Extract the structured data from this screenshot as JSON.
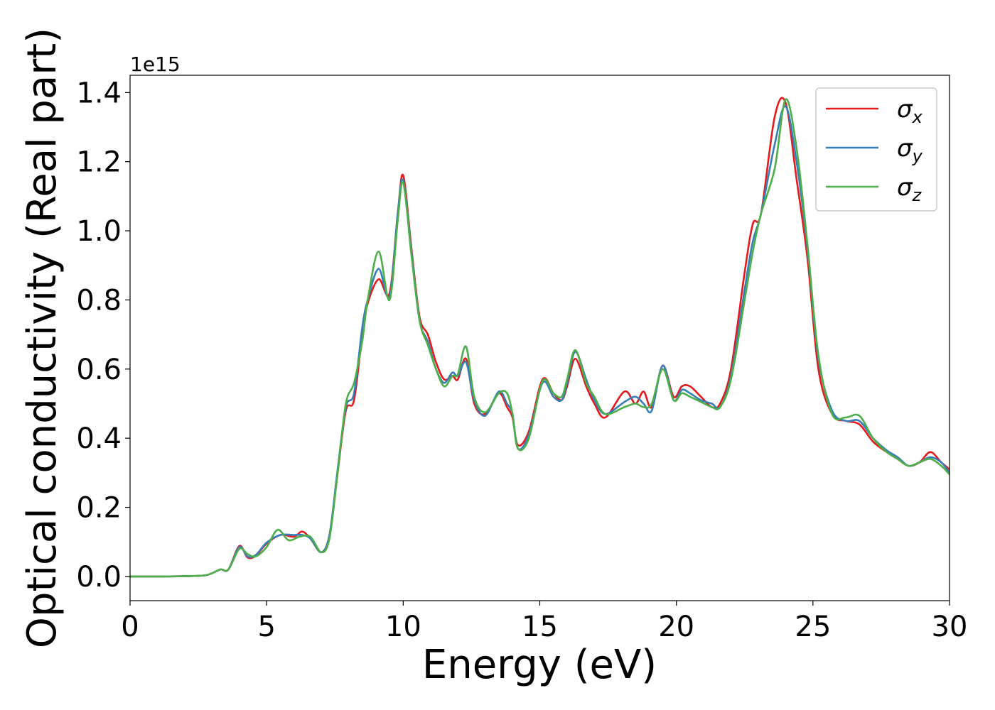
{
  "chart_data": {
    "type": "line",
    "title": "",
    "xlabel": "Energy (eV)",
    "ylabel": "Optical conductivity (Real part)",
    "y_offset_label": "1e15",
    "xlim": [
      0,
      30
    ],
    "ylim": [
      -0.07,
      1.45
    ],
    "xticks": [
      0,
      5,
      10,
      15,
      20,
      25,
      30
    ],
    "xtick_labels": [
      "0",
      "5",
      "10",
      "15",
      "20",
      "25",
      "30"
    ],
    "yticks": [
      0.0,
      0.2,
      0.4,
      0.6,
      0.8,
      1.0,
      1.2,
      1.4
    ],
    "ytick_labels": [
      "0.0",
      "0.2",
      "0.4",
      "0.6",
      "0.8",
      "1.0",
      "1.2",
      "1.4"
    ],
    "grid": false,
    "legend_position": "top-right",
    "series": [
      {
        "name": "σ_x",
        "legend_symbol": "σ",
        "legend_sub": "x",
        "color": "#e41a1c",
        "points": [
          [
            0,
            0
          ],
          [
            1,
            0
          ],
          [
            2,
            0.001
          ],
          [
            2.8,
            0.004
          ],
          [
            3.3,
            0.02
          ],
          [
            3.6,
            0.02
          ],
          [
            4,
            0.088
          ],
          [
            4.3,
            0.055
          ],
          [
            4.6,
            0.06
          ],
          [
            5,
            0.095
          ],
          [
            5.5,
            0.12
          ],
          [
            6,
            0.115
          ],
          [
            6.3,
            0.13
          ],
          [
            6.6,
            0.11
          ],
          [
            7,
            0.07
          ],
          [
            7.3,
            0.12
          ],
          [
            7.6,
            0.3
          ],
          [
            7.9,
            0.48
          ],
          [
            8.2,
            0.51
          ],
          [
            8.5,
            0.7
          ],
          [
            8.7,
            0.79
          ],
          [
            9.1,
            0.86
          ],
          [
            9.5,
            0.82
          ],
          [
            9.8,
            1.05
          ],
          [
            10,
            1.16
          ],
          [
            10.3,
            0.95
          ],
          [
            10.6,
            0.75
          ],
          [
            10.9,
            0.7
          ],
          [
            11.2,
            0.62
          ],
          [
            11.5,
            0.57
          ],
          [
            11.8,
            0.58
          ],
          [
            12,
            0.57
          ],
          [
            12.3,
            0.63
          ],
          [
            12.6,
            0.5
          ],
          [
            13,
            0.47
          ],
          [
            13.5,
            0.53
          ],
          [
            13.8,
            0.49
          ],
          [
            14,
            0.46
          ],
          [
            14.2,
            0.38
          ],
          [
            14.6,
            0.42
          ],
          [
            15.1,
            0.57
          ],
          [
            15.5,
            0.53
          ],
          [
            15.8,
            0.51
          ],
          [
            16,
            0.55
          ],
          [
            16.3,
            0.63
          ],
          [
            16.7,
            0.55
          ],
          [
            17,
            0.5
          ],
          [
            17.4,
            0.46
          ],
          [
            18.1,
            0.535
          ],
          [
            18.5,
            0.5
          ],
          [
            18.8,
            0.535
          ],
          [
            19.1,
            0.49
          ],
          [
            19.5,
            0.61
          ],
          [
            19.9,
            0.52
          ],
          [
            20.2,
            0.55
          ],
          [
            20.5,
            0.55
          ],
          [
            20.9,
            0.52
          ],
          [
            21.3,
            0.49
          ],
          [
            21.6,
            0.5
          ],
          [
            22,
            0.6
          ],
          [
            22.5,
            0.88
          ],
          [
            22.8,
            1.02
          ],
          [
            23.1,
            1.05
          ],
          [
            23.6,
            1.33
          ],
          [
            24,
            1.37
          ],
          [
            24.4,
            1.15
          ],
          [
            24.8,
            0.92
          ],
          [
            25.2,
            0.6
          ],
          [
            25.7,
            0.47
          ],
          [
            26.2,
            0.45
          ],
          [
            26.7,
            0.44
          ],
          [
            27.2,
            0.39
          ],
          [
            27.7,
            0.36
          ],
          [
            28.1,
            0.34
          ],
          [
            28.5,
            0.32
          ],
          [
            28.9,
            0.33
          ],
          [
            29.3,
            0.36
          ],
          [
            29.7,
            0.33
          ],
          [
            30,
            0.31
          ]
        ]
      },
      {
        "name": "σ_y",
        "legend_symbol": "σ",
        "legend_sub": "y",
        "color": "#377eb8",
        "points": [
          [
            0,
            0
          ],
          [
            1,
            0
          ],
          [
            2,
            0.001
          ],
          [
            2.8,
            0.004
          ],
          [
            3.3,
            0.02
          ],
          [
            3.6,
            0.02
          ],
          [
            4,
            0.085
          ],
          [
            4.3,
            0.058
          ],
          [
            4.6,
            0.062
          ],
          [
            5,
            0.098
          ],
          [
            5.5,
            0.12
          ],
          [
            6,
            0.12
          ],
          [
            6.3,
            0.12
          ],
          [
            6.6,
            0.11
          ],
          [
            7,
            0.07
          ],
          [
            7.3,
            0.12
          ],
          [
            7.6,
            0.31
          ],
          [
            7.9,
            0.49
          ],
          [
            8.2,
            0.53
          ],
          [
            8.5,
            0.72
          ],
          [
            8.7,
            0.8
          ],
          [
            9.1,
            0.89
          ],
          [
            9.5,
            0.81
          ],
          [
            9.8,
            1.05
          ],
          [
            10,
            1.145
          ],
          [
            10.3,
            0.94
          ],
          [
            10.6,
            0.74
          ],
          [
            10.9,
            0.68
          ],
          [
            11.2,
            0.6
          ],
          [
            11.5,
            0.56
          ],
          [
            11.8,
            0.59
          ],
          [
            12,
            0.58
          ],
          [
            12.3,
            0.62
          ],
          [
            12.6,
            0.51
          ],
          [
            13,
            0.465
          ],
          [
            13.5,
            0.535
          ],
          [
            13.8,
            0.5
          ],
          [
            14,
            0.47
          ],
          [
            14.2,
            0.37
          ],
          [
            14.6,
            0.41
          ],
          [
            15.1,
            0.56
          ],
          [
            15.5,
            0.52
          ],
          [
            15.8,
            0.51
          ],
          [
            16,
            0.56
          ],
          [
            16.3,
            0.65
          ],
          [
            16.7,
            0.57
          ],
          [
            17,
            0.51
          ],
          [
            17.4,
            0.47
          ],
          [
            18.1,
            0.505
          ],
          [
            18.5,
            0.52
          ],
          [
            18.8,
            0.5
          ],
          [
            19.1,
            0.48
          ],
          [
            19.5,
            0.61
          ],
          [
            19.9,
            0.51
          ],
          [
            20.2,
            0.54
          ],
          [
            20.5,
            0.53
          ],
          [
            20.9,
            0.51
          ],
          [
            21.3,
            0.5
          ],
          [
            21.6,
            0.49
          ],
          [
            22,
            0.58
          ],
          [
            22.5,
            0.83
          ],
          [
            22.8,
            0.97
          ],
          [
            23.1,
            1.05
          ],
          [
            23.6,
            1.25
          ],
          [
            24,
            1.36
          ],
          [
            24.4,
            1.2
          ],
          [
            24.8,
            0.95
          ],
          [
            25.2,
            0.63
          ],
          [
            25.7,
            0.48
          ],
          [
            26.2,
            0.45
          ],
          [
            26.7,
            0.45
          ],
          [
            27.2,
            0.4
          ],
          [
            27.7,
            0.365
          ],
          [
            28.1,
            0.345
          ],
          [
            28.5,
            0.32
          ],
          [
            28.9,
            0.33
          ],
          [
            29.3,
            0.345
          ],
          [
            29.7,
            0.33
          ],
          [
            30,
            0.3
          ]
        ]
      },
      {
        "name": "σ_z",
        "legend_symbol": "σ",
        "legend_sub": "z",
        "color": "#4daf4a",
        "points": [
          [
            0,
            0
          ],
          [
            1,
            0
          ],
          [
            2,
            0.001
          ],
          [
            2.8,
            0.004
          ],
          [
            3.3,
            0.02
          ],
          [
            3.6,
            0.02
          ],
          [
            4,
            0.08
          ],
          [
            4.3,
            0.065
          ],
          [
            4.6,
            0.058
          ],
          [
            5,
            0.085
          ],
          [
            5.4,
            0.135
          ],
          [
            5.8,
            0.105
          ],
          [
            6.2,
            0.115
          ],
          [
            6.6,
            0.115
          ],
          [
            7,
            0.07
          ],
          [
            7.3,
            0.11
          ],
          [
            7.6,
            0.3
          ],
          [
            7.9,
            0.5
          ],
          [
            8.2,
            0.56
          ],
          [
            8.5,
            0.68
          ],
          [
            8.7,
            0.8
          ],
          [
            9.1,
            0.94
          ],
          [
            9.5,
            0.8
          ],
          [
            9.8,
            1.03
          ],
          [
            10,
            1.14
          ],
          [
            10.3,
            0.93
          ],
          [
            10.6,
            0.74
          ],
          [
            10.9,
            0.67
          ],
          [
            11.2,
            0.6
          ],
          [
            11.5,
            0.55
          ],
          [
            11.8,
            0.58
          ],
          [
            12,
            0.585
          ],
          [
            12.3,
            0.665
          ],
          [
            12.6,
            0.52
          ],
          [
            13,
            0.475
          ],
          [
            13.5,
            0.53
          ],
          [
            13.8,
            0.53
          ],
          [
            14,
            0.47
          ],
          [
            14.2,
            0.37
          ],
          [
            14.6,
            0.4
          ],
          [
            15.1,
            0.565
          ],
          [
            15.5,
            0.53
          ],
          [
            15.8,
            0.52
          ],
          [
            16,
            0.57
          ],
          [
            16.3,
            0.655
          ],
          [
            16.7,
            0.56
          ],
          [
            17,
            0.52
          ],
          [
            17.4,
            0.47
          ],
          [
            18.1,
            0.49
          ],
          [
            18.5,
            0.5
          ],
          [
            18.8,
            0.49
          ],
          [
            19.1,
            0.5
          ],
          [
            19.5,
            0.6
          ],
          [
            19.9,
            0.51
          ],
          [
            20.2,
            0.53
          ],
          [
            20.5,
            0.52
          ],
          [
            20.9,
            0.505
          ],
          [
            21.3,
            0.49
          ],
          [
            21.6,
            0.49
          ],
          [
            22,
            0.57
          ],
          [
            22.5,
            0.8
          ],
          [
            22.8,
            0.94
          ],
          [
            23.1,
            1.05
          ],
          [
            23.6,
            1.18
          ],
          [
            24,
            1.38
          ],
          [
            24.4,
            1.24
          ],
          [
            24.8,
            0.96
          ],
          [
            25.2,
            0.64
          ],
          [
            25.7,
            0.47
          ],
          [
            26.2,
            0.46
          ],
          [
            26.7,
            0.465
          ],
          [
            27.2,
            0.4
          ],
          [
            27.7,
            0.36
          ],
          [
            28.1,
            0.34
          ],
          [
            28.5,
            0.32
          ],
          [
            28.9,
            0.33
          ],
          [
            29.3,
            0.34
          ],
          [
            29.7,
            0.32
          ],
          [
            30,
            0.295
          ]
        ]
      }
    ]
  }
}
